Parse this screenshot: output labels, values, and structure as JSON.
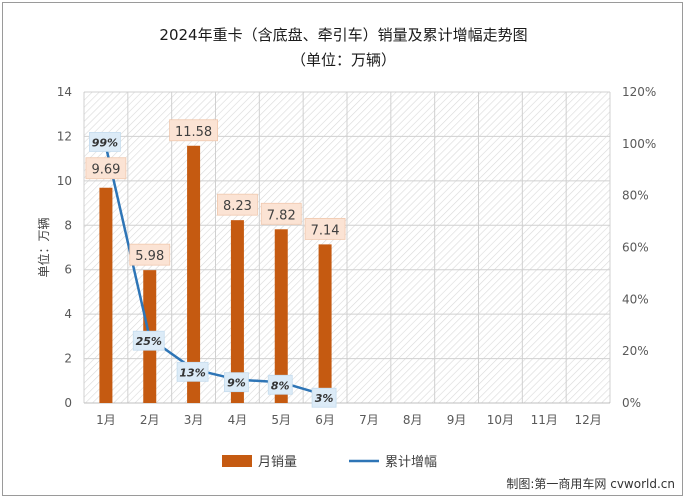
{
  "chart_data": {
    "type": "bar",
    "title": "2024年重卡（含底盘、牵引车）销量及累计增幅走势图",
    "subtitle": "（单位：万辆）",
    "ylabel": "单位：万辆",
    "categories": [
      "1月",
      "2月",
      "3月",
      "4月",
      "5月",
      "6月",
      "7月",
      "8月",
      "9月",
      "10月",
      "11月",
      "12月"
    ],
    "series": [
      {
        "name": "月销量",
        "kind": "bar",
        "axis": "left",
        "color": "#C55A11",
        "values": [
          9.69,
          5.98,
          11.58,
          8.23,
          7.82,
          7.14,
          null,
          null,
          null,
          null,
          null,
          null
        ],
        "labels": [
          "9.69",
          "5.98",
          "11.58",
          "8.23",
          "7.82",
          "7.14"
        ]
      },
      {
        "name": "累计增幅",
        "kind": "line",
        "axis": "right",
        "color": "#2E75B6",
        "values": [
          99,
          25,
          13,
          9,
          8,
          3,
          null,
          null,
          null,
          null,
          null,
          null
        ],
        "labels": [
          "99%",
          "25%",
          "13%",
          "9%",
          "8%",
          "3%"
        ]
      }
    ],
    "ylim": [
      0,
      14
    ],
    "yticks": [
      "0",
      "2",
      "4",
      "6",
      "8",
      "10",
      "12",
      "14"
    ],
    "y2lim": [
      0,
      120
    ],
    "y2ticks": [
      "0%",
      "20%",
      "40%",
      "60%",
      "80%",
      "100%",
      "120%"
    ],
    "grid": true,
    "legend": "bottom",
    "plot_background": "hatched"
  },
  "source": "制图:第一商用车网 cvworld.cn"
}
